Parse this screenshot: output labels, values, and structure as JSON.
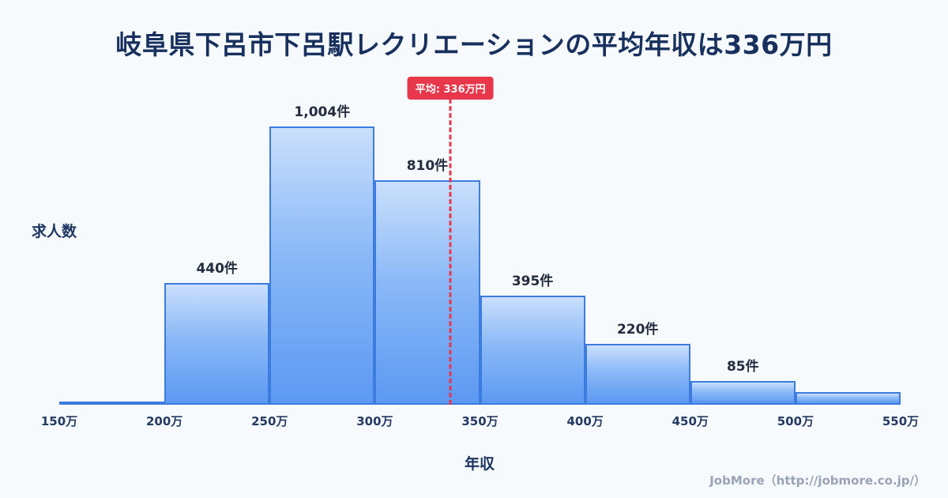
{
  "page": {
    "footer": "JobMore（http://jobmore.co.jp/）"
  },
  "chart_data": {
    "type": "bar",
    "title": "岐阜県下呂市下呂駅レクリエーションの平均年収は336万円",
    "xlabel": "年収",
    "ylabel": "求人数",
    "x_ticks": [
      "150万",
      "200万",
      "250万",
      "300万",
      "350万",
      "400万",
      "450万",
      "500万",
      "550万"
    ],
    "x_range": [
      150,
      550
    ],
    "bins": [
      [
        150,
        200
      ],
      [
        200,
        250
      ],
      [
        250,
        300
      ],
      [
        300,
        350
      ],
      [
        350,
        400
      ],
      [
        400,
        450
      ],
      [
        450,
        500
      ],
      [
        500,
        550
      ]
    ],
    "values": [
      10,
      440,
      1004,
      810,
      395,
      220,
      85,
      45
    ],
    "bar_labels": [
      "",
      "440件",
      "1,004件",
      "810件",
      "395件",
      "220件",
      "85件",
      ""
    ],
    "average": {
      "value": 336,
      "label": "平均: 336万円"
    },
    "ylim": [
      0,
      1050
    ],
    "legend": "none",
    "grid": "off",
    "colors": {
      "bar_top": "#cadffc",
      "bar_bottom": "#5c99f2",
      "bar_border": "#3c7cdf",
      "average_line": "#e8374a",
      "title_text": "#17305e",
      "background": "#f7fafd"
    }
  }
}
